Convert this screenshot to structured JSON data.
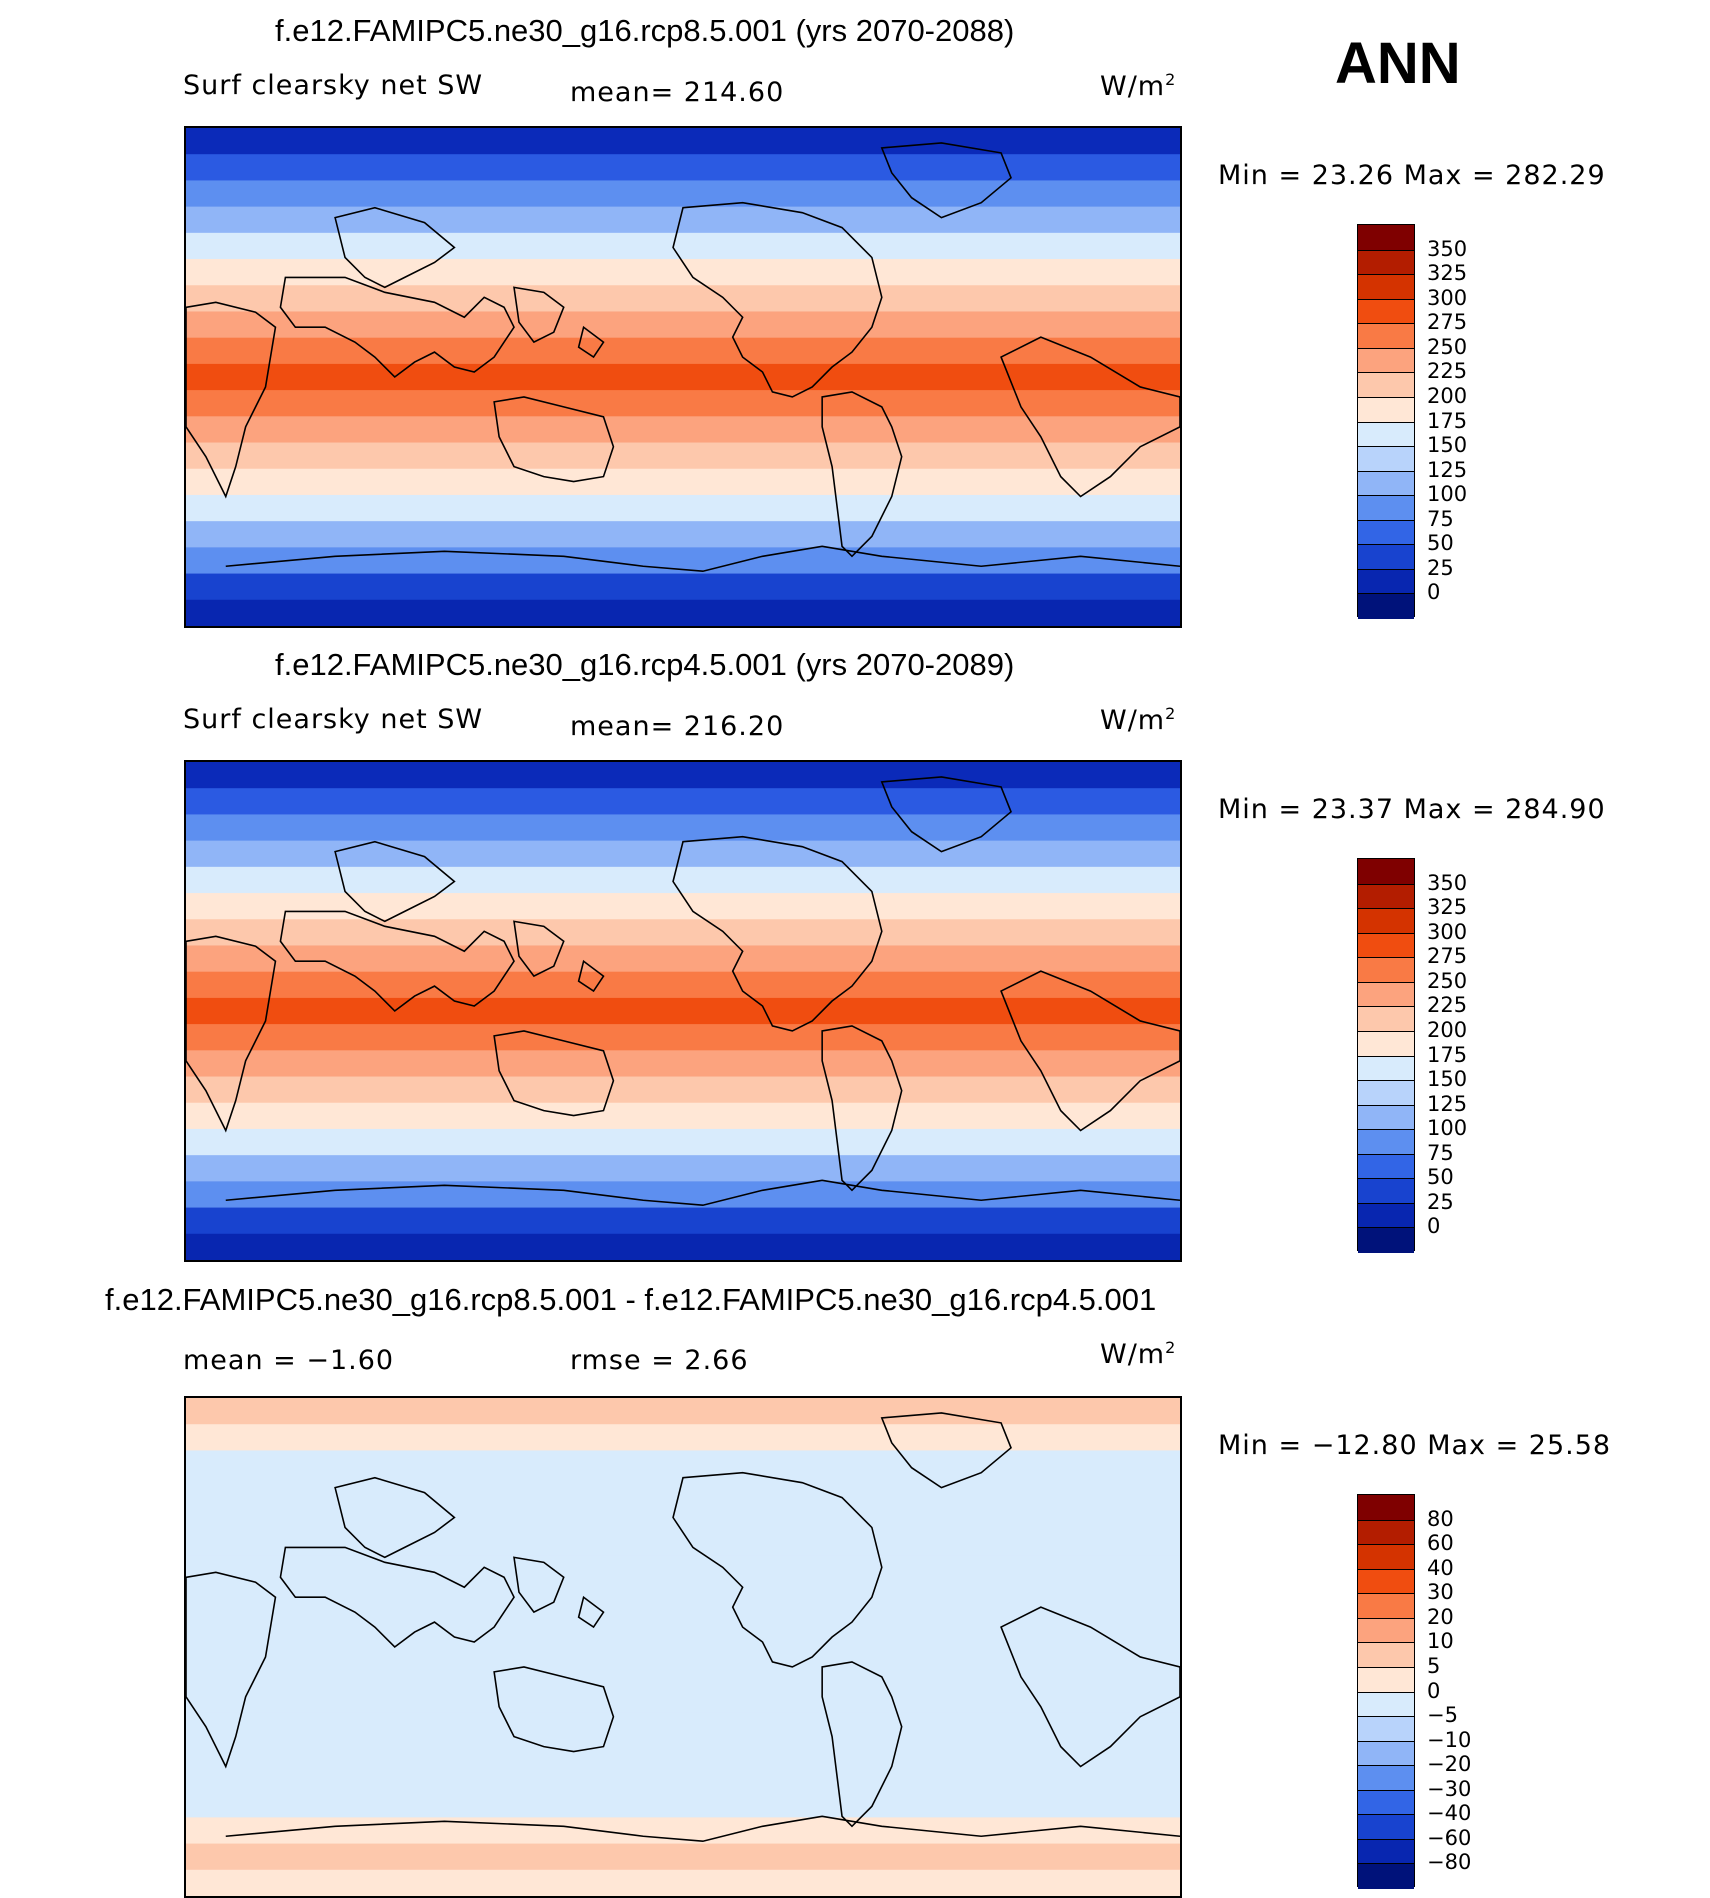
{
  "season": "ANN",
  "panels": [
    {
      "title": "f.e12.FAMIPC5.ne30_g16.rcp8.5.001 (yrs 2070-2088)",
      "variable": "Surf clearsky net SW",
      "stat1": "mean= 214.60",
      "stat2": "",
      "units": "W/m",
      "units_sup": "2",
      "minmax": "Min =   23.26 Max = 282.29",
      "colorbar": {
        "labels": [
          "350",
          "325",
          "300",
          "275",
          "250",
          "225",
          "200",
          "175",
          "150",
          "125",
          "100",
          "75",
          "50",
          "25",
          "0"
        ],
        "colors": [
          "#7f0000",
          "#b31d00",
          "#d43300",
          "#f04d10",
          "#f97a45",
          "#fca37e",
          "#fdc8ac",
          "#ffe7d6",
          "#d8ebfc",
          "#b8d3fb",
          "#90b5f7",
          "#5d8ff0",
          "#3265e6",
          "#1843cf",
          "#0826b0",
          "#00127a"
        ]
      },
      "bands": [
        {
          "color": "#0b2ab9"
        },
        {
          "color": "#2b5ae2"
        },
        {
          "color": "#5d8ff0"
        },
        {
          "color": "#90b5f7"
        },
        {
          "color": "#d8ebfc"
        },
        {
          "color": "#ffe7d6"
        },
        {
          "color": "#fdc8ac"
        },
        {
          "color": "#fca37e"
        },
        {
          "color": "#f97a45"
        },
        {
          "color": "#f04d10"
        },
        {
          "color": "#f97a45"
        },
        {
          "color": "#fca37e"
        },
        {
          "color": "#fdc8ac"
        },
        {
          "color": "#ffe7d6"
        },
        {
          "color": "#d8ebfc"
        },
        {
          "color": "#90b5f7"
        },
        {
          "color": "#5d8ff0"
        },
        {
          "color": "#1843cf"
        },
        {
          "color": "#0826b0"
        }
      ]
    },
    {
      "title": "f.e12.FAMIPC5.ne30_g16.rcp4.5.001 (yrs 2070-2089)",
      "variable": "Surf clearsky net SW",
      "stat1": "mean= 216.20",
      "stat2": "",
      "units": "W/m",
      "units_sup": "2",
      "minmax": "Min =   23.37 Max = 284.90",
      "colorbar": {
        "labels": [
          "350",
          "325",
          "300",
          "275",
          "250",
          "225",
          "200",
          "175",
          "150",
          "125",
          "100",
          "75",
          "50",
          "25",
          "0"
        ],
        "colors": [
          "#7f0000",
          "#b31d00",
          "#d43300",
          "#f04d10",
          "#f97a45",
          "#fca37e",
          "#fdc8ac",
          "#ffe7d6",
          "#d8ebfc",
          "#b8d3fb",
          "#90b5f7",
          "#5d8ff0",
          "#3265e6",
          "#1843cf",
          "#0826b0",
          "#00127a"
        ]
      },
      "bands": [
        {
          "color": "#0b2ab9"
        },
        {
          "color": "#2b5ae2"
        },
        {
          "color": "#5d8ff0"
        },
        {
          "color": "#90b5f7"
        },
        {
          "color": "#d8ebfc"
        },
        {
          "color": "#ffe7d6"
        },
        {
          "color": "#fdc8ac"
        },
        {
          "color": "#fca37e"
        },
        {
          "color": "#f97a45"
        },
        {
          "color": "#f04d10"
        },
        {
          "color": "#f97a45"
        },
        {
          "color": "#fca37e"
        },
        {
          "color": "#fdc8ac"
        },
        {
          "color": "#ffe7d6"
        },
        {
          "color": "#d8ebfc"
        },
        {
          "color": "#90b5f7"
        },
        {
          "color": "#5d8ff0"
        },
        {
          "color": "#1843cf"
        },
        {
          "color": "#0826b0"
        }
      ]
    },
    {
      "title": "f.e12.FAMIPC5.ne30_g16.rcp8.5.001 - f.e12.FAMIPC5.ne30_g16.rcp4.5.001",
      "variable": "mean =   −1.60",
      "stat1": "rmse =     2.66",
      "stat2": "",
      "units": "W/m",
      "units_sup": "2",
      "minmax": "Min = −12.80 Max =   25.58",
      "colorbar": {
        "labels": [
          "80",
          "60",
          "40",
          "30",
          "20",
          "10",
          "5",
          "0",
          "−5",
          "−10",
          "−20",
          "−30",
          "−40",
          "−60",
          "−80"
        ],
        "colors": [
          "#7f0000",
          "#b31d00",
          "#d43300",
          "#f04d10",
          "#f97a45",
          "#fca37e",
          "#fdc8ac",
          "#ffe7d6",
          "#d8ebfc",
          "#b8d3fb",
          "#90b5f7",
          "#5d8ff0",
          "#3265e6",
          "#1843cf",
          "#0826b0",
          "#00127a"
        ]
      },
      "bands": [
        {
          "color": "#fdc8ac"
        },
        {
          "color": "#ffe7d6"
        },
        {
          "color": "#d8ebfc"
        },
        {
          "color": "#d8ebfc"
        },
        {
          "color": "#d8ebfc"
        },
        {
          "color": "#d8ebfc"
        },
        {
          "color": "#d8ebfc"
        },
        {
          "color": "#d8ebfc"
        },
        {
          "color": "#d8ebfc"
        },
        {
          "color": "#d8ebfc"
        },
        {
          "color": "#d8ebfc"
        },
        {
          "color": "#d8ebfc"
        },
        {
          "color": "#d8ebfc"
        },
        {
          "color": "#d8ebfc"
        },
        {
          "color": "#d8ebfc"
        },
        {
          "color": "#d8ebfc"
        },
        {
          "color": "#ffe7d6"
        },
        {
          "color": "#fdc8ac"
        },
        {
          "color": "#ffe7d6"
        }
      ]
    }
  ]
}
